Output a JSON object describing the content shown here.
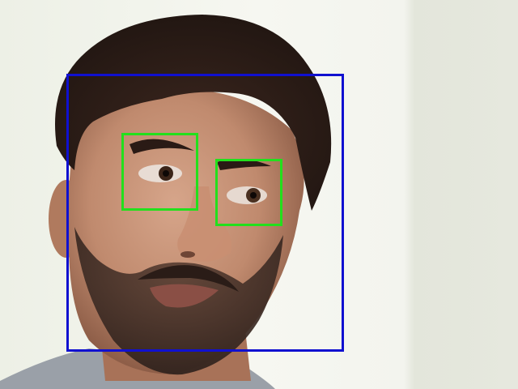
{
  "image": {
    "subject": "webcam-portrait",
    "colors": {
      "wall_light": "#f3f4ee",
      "wall_shadow": "#dfe2d6",
      "skin": "#c9967a",
      "skin_shadow": "#9c6a52",
      "hair": "#2b1b16",
      "beard": "#3a2a24",
      "shirt": "#9aa0a8",
      "face_box": "#1010d0",
      "eye_box": "#22e01c"
    }
  },
  "detections": {
    "face": {
      "label": "face",
      "color": "#1010d0"
    },
    "eyes": [
      {
        "label": "eye",
        "color": "#22e01c"
      },
      {
        "label": "eye",
        "color": "#22e01c"
      }
    ]
  }
}
